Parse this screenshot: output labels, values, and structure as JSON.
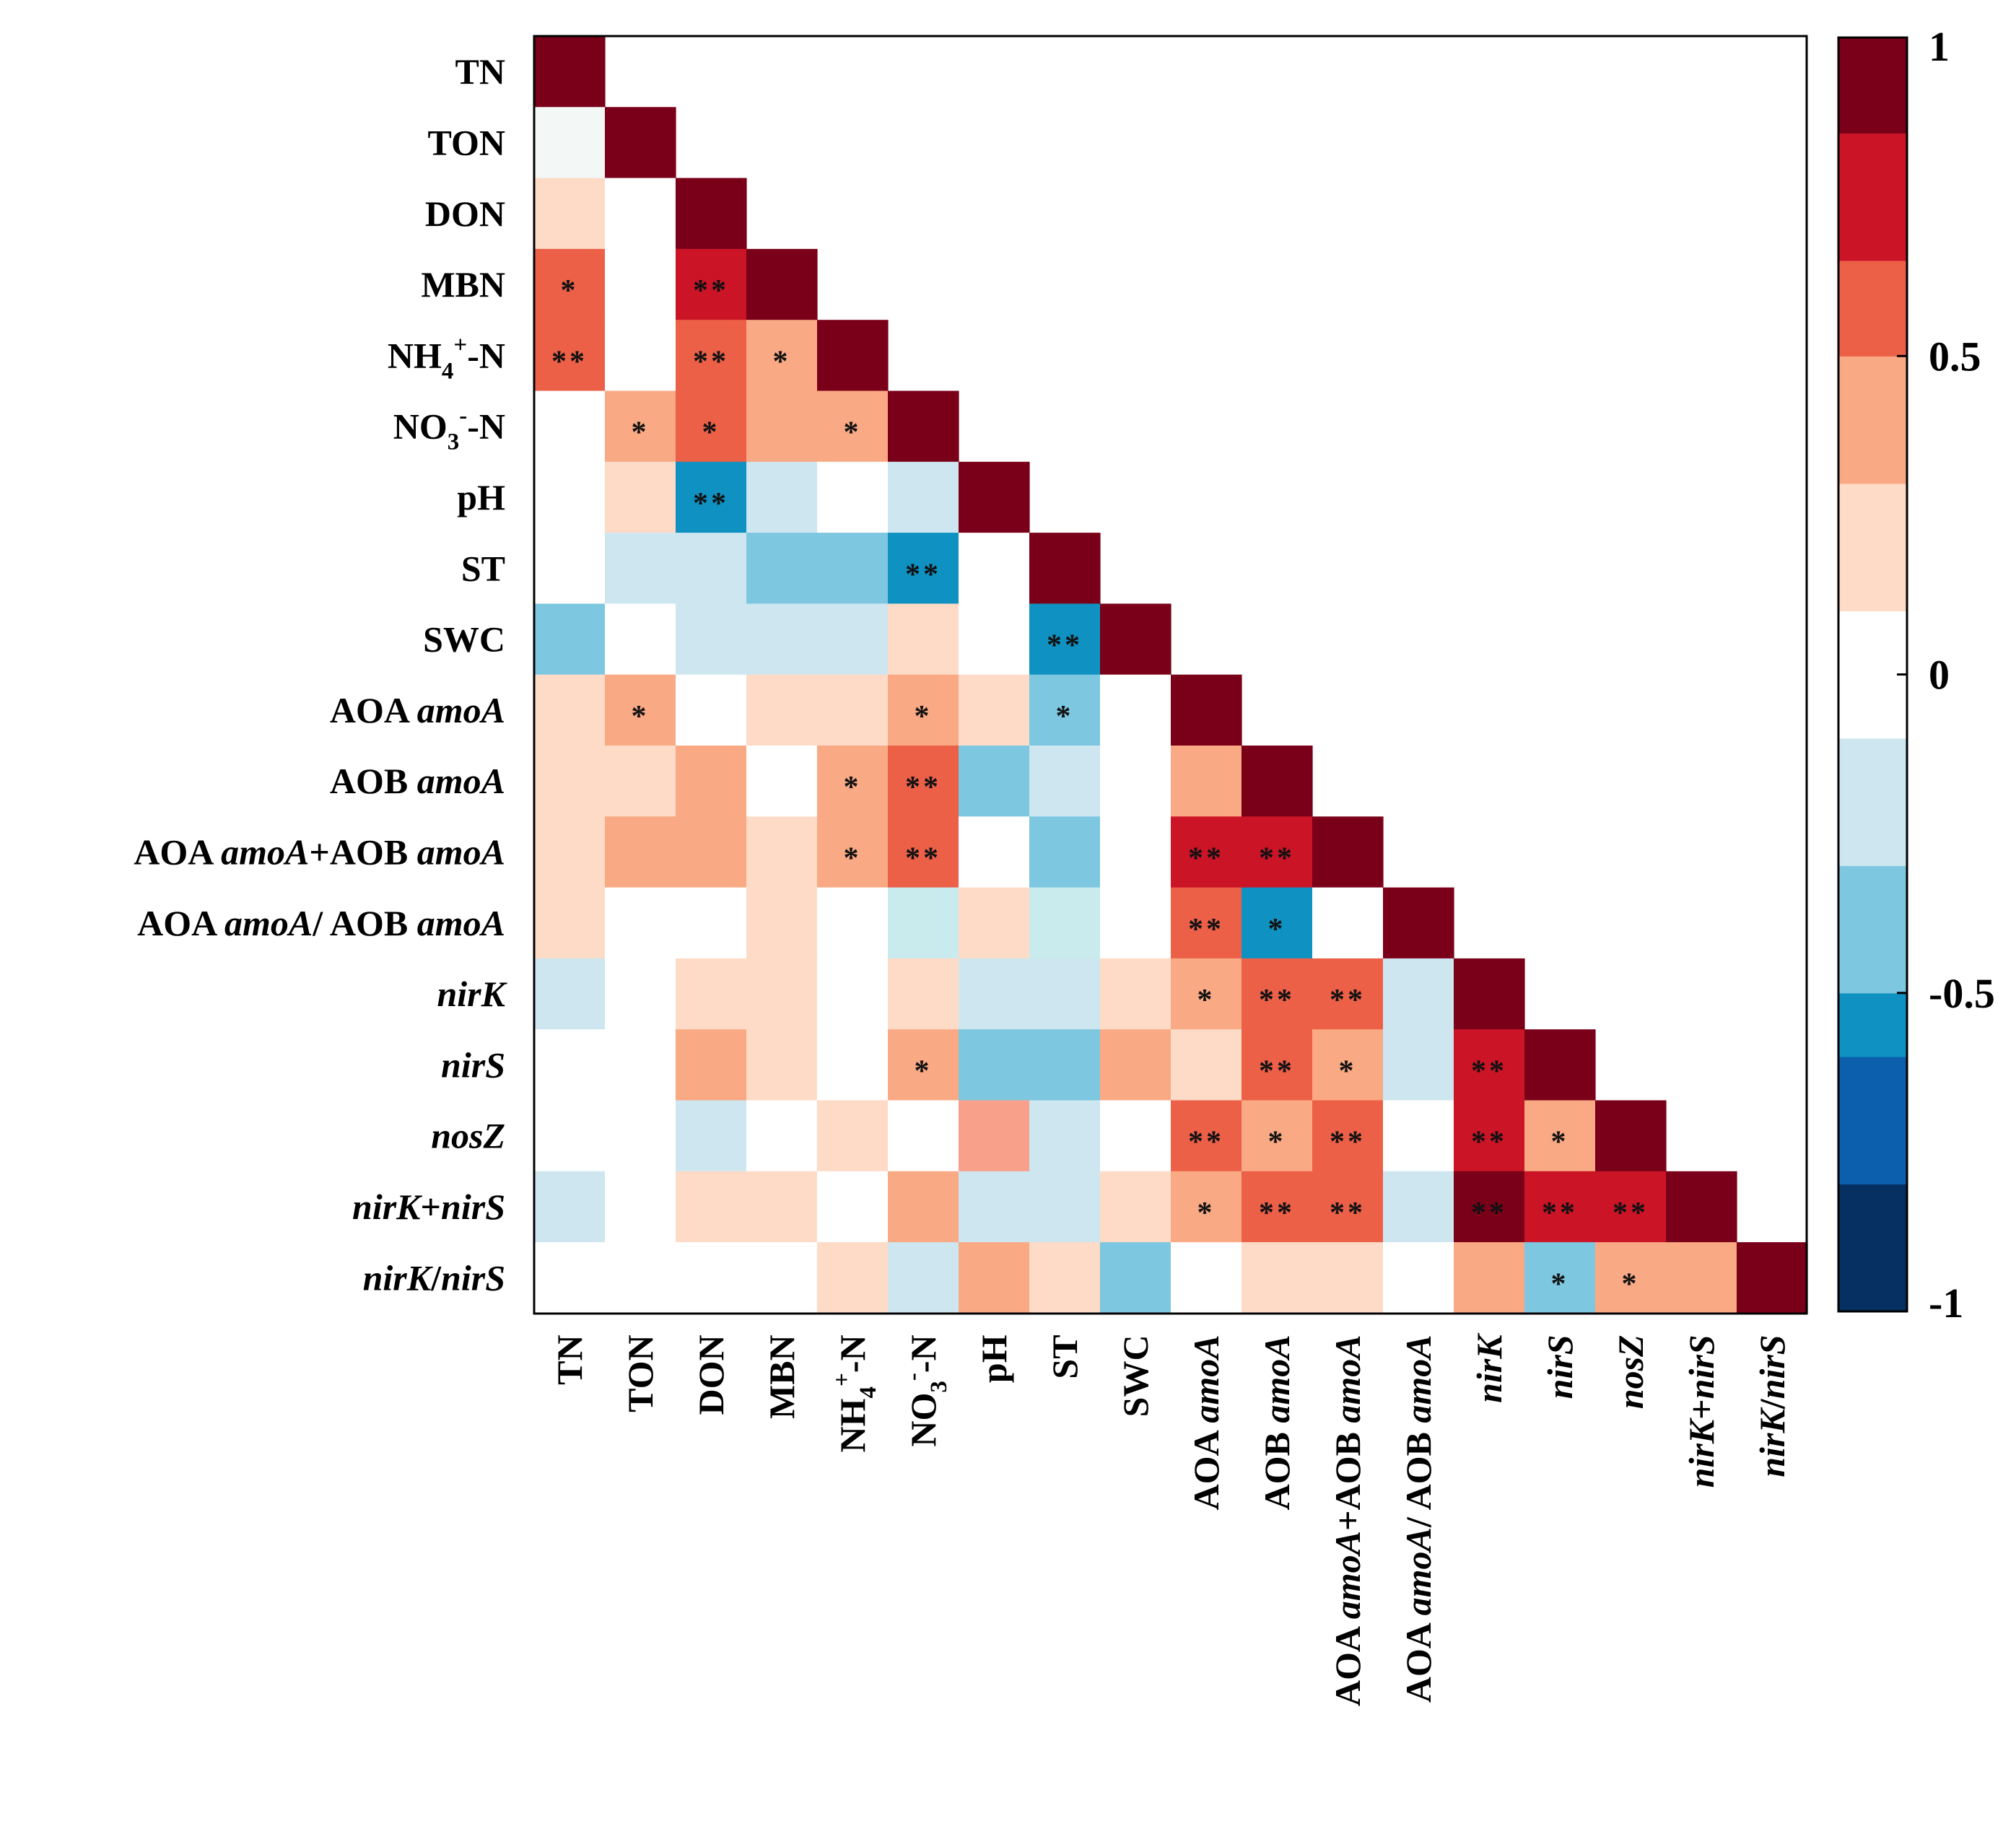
{
  "chart_data": {
    "type": "heatmap",
    "title": "",
    "variables": [
      {
        "id": "TN",
        "parts": [
          {
            "t": "TN",
            "i": false
          }
        ]
      },
      {
        "id": "TON",
        "parts": [
          {
            "t": "TON",
            "i": false
          }
        ]
      },
      {
        "id": "DON",
        "parts": [
          {
            "t": "DON",
            "i": false
          }
        ]
      },
      {
        "id": "MBN",
        "parts": [
          {
            "t": "MBN",
            "i": false
          }
        ]
      },
      {
        "id": "NH4-N",
        "parts": [
          {
            "t": "NH",
            "i": false
          },
          {
            "t": "4",
            "i": false,
            "sub": true
          },
          {
            "t": "+",
            "i": false,
            "sup": true
          },
          {
            "t": "-N",
            "i": false
          }
        ]
      },
      {
        "id": "NO3-N",
        "parts": [
          {
            "t": "NO",
            "i": false
          },
          {
            "t": "3",
            "i": false,
            "sub": true
          },
          {
            "t": "-",
            "i": false,
            "sup": true
          },
          {
            "t": "-N",
            "i": false
          }
        ]
      },
      {
        "id": "pH",
        "parts": [
          {
            "t": "pH",
            "i": false
          }
        ]
      },
      {
        "id": "ST",
        "parts": [
          {
            "t": "ST",
            "i": false
          }
        ]
      },
      {
        "id": "SWC",
        "parts": [
          {
            "t": "SWC",
            "i": false
          }
        ]
      },
      {
        "id": "AOA amoA",
        "parts": [
          {
            "t": "AOA ",
            "i": false
          },
          {
            "t": "amoA",
            "i": true
          }
        ]
      },
      {
        "id": "AOB amoA",
        "parts": [
          {
            "t": "AOB ",
            "i": false
          },
          {
            "t": "amoA",
            "i": true
          }
        ]
      },
      {
        "id": "AOA amoA+AOB amoA",
        "parts": [
          {
            "t": "AOA ",
            "i": false
          },
          {
            "t": "amoA",
            "i": true
          },
          {
            "t": "+AOB ",
            "i": false
          },
          {
            "t": "amoA",
            "i": true
          }
        ]
      },
      {
        "id": "AOA amoA/ AOB amoA",
        "parts": [
          {
            "t": "AOA ",
            "i": false
          },
          {
            "t": "amoA",
            "i": true
          },
          {
            "t": "/ AOB ",
            "i": false
          },
          {
            "t": "amoA",
            "i": true
          }
        ]
      },
      {
        "id": "nirK",
        "parts": [
          {
            "t": "nirK",
            "i": true
          }
        ]
      },
      {
        "id": "nirS",
        "parts": [
          {
            "t": "nirS",
            "i": true
          }
        ]
      },
      {
        "id": "nosZ",
        "parts": [
          {
            "t": "nosZ",
            "i": true
          }
        ]
      },
      {
        "id": "nirK+nirS",
        "parts": [
          {
            "t": "nirK",
            "i": true
          },
          {
            "t": "+",
            "i": false
          },
          {
            "t": "nirS",
            "i": true
          }
        ]
      },
      {
        "id": "nirK/nirS",
        "parts": [
          {
            "t": "nirK",
            "i": true
          },
          {
            "t": "/",
            "i": false
          },
          {
            "t": "nirS",
            "i": true
          }
        ]
      }
    ],
    "matrix": [
      [
        1.0
      ],
      [
        -0.02,
        1.0
      ],
      [
        0.2,
        0.0,
        1.0
      ],
      [
        0.55,
        0.0,
        0.75,
        1.0
      ],
      [
        0.55,
        0.0,
        0.55,
        0.4,
        1.0
      ],
      [
        0.0,
        0.35,
        0.55,
        0.35,
        0.35,
        1.0
      ],
      [
        0.0,
        0.2,
        -0.55,
        -0.15,
        0.0,
        -0.15,
        1.0
      ],
      [
        0.0,
        -0.15,
        -0.15,
        -0.35,
        -0.35,
        -0.55,
        0.0,
        1.0
      ],
      [
        -0.35,
        0.0,
        -0.15,
        -0.15,
        -0.15,
        0.2,
        0.0,
        -0.55,
        1.0
      ],
      [
        0.2,
        0.4,
        0.0,
        0.2,
        0.2,
        0.4,
        0.2,
        -0.4,
        0.0,
        1.0
      ],
      [
        0.2,
        0.2,
        0.4,
        0.0,
        0.4,
        0.55,
        -0.35,
        -0.15,
        0.0,
        0.4,
        1.0
      ],
      [
        0.2,
        0.4,
        0.4,
        0.2,
        0.4,
        0.55,
        0.0,
        -0.35,
        0.0,
        0.75,
        0.75,
        1.0
      ],
      [
        0.2,
        0.0,
        0.0,
        0.2,
        0.0,
        -0.12,
        0.2,
        -0.12,
        0.0,
        0.55,
        -0.55,
        0.0,
        1.0
      ],
      [
        -0.15,
        0.0,
        0.2,
        0.2,
        0.0,
        0.2,
        -0.15,
        -0.15,
        0.2,
        0.4,
        0.55,
        0.55,
        -0.15,
        1.0
      ],
      [
        0.0,
        0.0,
        0.4,
        0.2,
        0.0,
        0.4,
        -0.35,
        -0.35,
        0.4,
        0.2,
        0.55,
        0.4,
        -0.15,
        0.75,
        1.0
      ],
      [
        0.0,
        0.0,
        -0.15,
        0.0,
        0.2,
        0.0,
        0.45,
        -0.15,
        0.0,
        0.55,
        0.4,
        0.55,
        0.0,
        0.75,
        0.4,
        1.0
      ],
      [
        -0.15,
        0.0,
        0.2,
        0.2,
        0.0,
        0.4,
        -0.15,
        -0.15,
        0.2,
        0.4,
        0.55,
        0.55,
        -0.15,
        0.9,
        0.75,
        0.75,
        1.0
      ],
      [
        0.0,
        0.0,
        0.0,
        0.0,
        0.2,
        -0.15,
        0.4,
        0.2,
        -0.35,
        0.0,
        0.2,
        0.2,
        0.0,
        0.4,
        -0.35,
        0.4,
        0.4,
        1.0
      ]
    ],
    "significance": [
      [
        "",
        "",
        "",
        "",
        "",
        "",
        "",
        "",
        "",
        "",
        "",
        "",
        "",
        "",
        "",
        "",
        "",
        ""
      ],
      [
        "",
        "",
        "",
        "",
        "",
        "",
        "",
        "",
        "",
        "",
        "",
        "",
        "",
        "",
        "",
        "",
        "",
        ""
      ],
      [
        "",
        "",
        "",
        "",
        "",
        "",
        "",
        "",
        "",
        "",
        "",
        "",
        "",
        "",
        "",
        "",
        "",
        ""
      ],
      [
        "*",
        "",
        "**",
        "",
        "",
        "",
        "",
        "",
        "",
        "",
        "",
        "",
        "",
        "",
        "",
        "",
        "",
        ""
      ],
      [
        "**",
        "",
        "**",
        "*",
        "",
        "",
        "",
        "",
        "",
        "",
        "",
        "",
        "",
        "",
        "",
        "",
        "",
        ""
      ],
      [
        "",
        "*",
        "*",
        "",
        "*",
        "",
        "",
        "",
        "",
        "",
        "",
        "",
        "",
        "",
        "",
        "",
        "",
        ""
      ],
      [
        "",
        "",
        "**",
        "",
        "",
        "",
        "",
        "",
        "",
        "",
        "",
        "",
        "",
        "",
        "",
        "",
        "",
        ""
      ],
      [
        "",
        "",
        "",
        "",
        "",
        "**",
        "",
        "",
        "",
        "",
        "",
        "",
        "",
        "",
        "",
        "",
        "",
        ""
      ],
      [
        "",
        "",
        "",
        "",
        "",
        "",
        "",
        "**",
        "",
        "",
        "",
        "",
        "",
        "",
        "",
        "",
        "",
        ""
      ],
      [
        "",
        "*",
        "",
        "",
        "",
        "*",
        "",
        "*",
        "",
        "",
        "",
        "",
        "",
        "",
        "",
        "",
        "",
        ""
      ],
      [
        "",
        "",
        "",
        "",
        "*",
        "**",
        "",
        "",
        "",
        "",
        "",
        "",
        "",
        "",
        "",
        "",
        "",
        ""
      ],
      [
        "",
        "",
        "",
        "",
        "*",
        "**",
        "",
        "",
        "",
        "**",
        "**",
        "",
        "",
        "",
        "",
        "",
        "",
        ""
      ],
      [
        "",
        "",
        "",
        "",
        "",
        "",
        "",
        "",
        "",
        "**",
        "*",
        "",
        "",
        "",
        "",
        "",
        "",
        ""
      ],
      [
        "",
        "",
        "",
        "",
        "",
        "",
        "",
        "",
        "",
        "*",
        "**",
        "**",
        "",
        "",
        "",
        "",
        "",
        ""
      ],
      [
        "",
        "",
        "",
        "",
        "",
        "*",
        "",
        "",
        "",
        "",
        "**",
        "*",
        "",
        "**",
        "",
        "",
        "",
        ""
      ],
      [
        "",
        "",
        "",
        "",
        "",
        "",
        "",
        "",
        "",
        "**",
        "*",
        "**",
        "",
        "**",
        "*",
        "",
        "",
        ""
      ],
      [
        "",
        "",
        "",
        "",
        "",
        "",
        "",
        "",
        "",
        "*",
        "**",
        "**",
        "",
        "**",
        "**",
        "**",
        "",
        ""
      ],
      [
        "",
        "",
        "",
        "",
        "",
        "",
        "",
        "",
        "",
        "",
        "",
        "",
        "",
        "",
        "*",
        "*",
        "",
        ""
      ]
    ],
    "colorbar": {
      "range": [
        -1,
        1
      ],
      "ticks": [
        {
          "value": 1,
          "label": "1"
        },
        {
          "value": 0.5,
          "label": "0.5"
        },
        {
          "value": 0,
          "label": "0"
        },
        {
          "value": -0.5,
          "label": "-0.5"
        },
        {
          "value": -1,
          "label": "-1"
        }
      ],
      "bins": [
        {
          "min": -1.0,
          "max": -0.8,
          "color": "#053061"
        },
        {
          "min": -0.8,
          "max": -0.6,
          "color": "#0b5fac"
        },
        {
          "min": -0.6,
          "max": -0.5,
          "color": "#0f92c2"
        },
        {
          "min": -0.5,
          "max": -0.3,
          "color": "#7dc7e0"
        },
        {
          "min": -0.3,
          "max": -0.1,
          "color": "#cee6f0"
        },
        {
          "min": -0.1,
          "max": 0.1,
          "color": "#ffffff"
        },
        {
          "min": 0.1,
          "max": 0.3,
          "color": "#fddbc7"
        },
        {
          "min": 0.3,
          "max": 0.5,
          "color": "#f9a983"
        },
        {
          "min": 0.5,
          "max": 0.65,
          "color": "#ec6048"
        },
        {
          "min": 0.65,
          "max": 0.85,
          "color": "#cc1427"
        },
        {
          "min": 0.85,
          "max": 1.0,
          "color": "#7a0019"
        }
      ]
    },
    "colors": {
      "cell_tn_ton": "#f3f7f6",
      "cell_ph_nosz": "#f8a08a",
      "cell_pale_cyan": "#c9ebee",
      "diagonal": "#7a0019"
    }
  }
}
